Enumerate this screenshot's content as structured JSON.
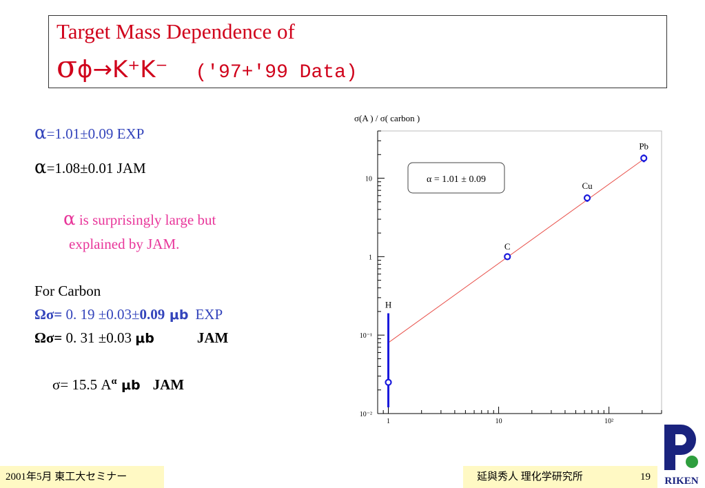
{
  "title": {
    "line1": "Target Mass Dependence of",
    "sigma": "σ",
    "reaction": "ϕ→K⁺K⁻",
    "data_note": "('97+'99 Data)"
  },
  "left": {
    "alpha_sym": "α",
    "exp_eq": "=1.01±0.09  EXP",
    "jam_eq": "=1.08±0.01  JAM",
    "note_line1": " is surprisingly large but",
    "note_line2": "explained by JAM.",
    "carbon_label": "For Carbon",
    "omega_sym": "Ωσ=",
    "exp_val": " 0. 19  ±0.03±",
    "exp_bold": "0.09",
    "mu_b": " μb",
    "exp_tag": "EXP",
    "jam_val": " 0. 31  ±0.03 ",
    "jam_tag": "JAM",
    "formula_prefix": "σ= 15.5 A",
    "formula_sup": "α",
    "formula_tag": "JAM"
  },
  "chart_data": {
    "type": "scatter",
    "title": "σ(A ) / σ( carbon )",
    "xscale": "log",
    "yscale": "log",
    "xlim": [
      0.8,
      300
    ],
    "ylim": [
      0.01,
      40
    ],
    "x_ticks": [
      {
        "v": 1,
        "label": "1"
      },
      {
        "v": 10,
        "label": "10"
      },
      {
        "v": 100,
        "label": "10²"
      }
    ],
    "y_ticks": [
      {
        "v": 0.01,
        "label": "10⁻²"
      },
      {
        "v": 0.1,
        "label": "10⁻¹"
      },
      {
        "v": 1,
        "label": "1"
      },
      {
        "v": 10,
        "label": "10"
      }
    ],
    "points": [
      {
        "label": "H",
        "x": 1,
        "y": 0.025,
        "err_low": 0.012,
        "err_high": 0.19
      },
      {
        "label": "C",
        "x": 12,
        "y": 1.0,
        "err_low": 0.95,
        "err_high": 1.05
      },
      {
        "label": "Cu",
        "x": 63.5,
        "y": 5.6,
        "err_low": 5.0,
        "err_high": 6.2
      },
      {
        "label": "Pb",
        "x": 207,
        "y": 18.0,
        "err_low": 16.0,
        "err_high": 20.0
      }
    ],
    "fit": {
      "x": [
        1,
        207
      ],
      "y": [
        0.08,
        17.5
      ]
    },
    "annotation": "α = 1.01 ± 0.09",
    "colors": {
      "points": "#1a1adb",
      "fit": "#e8504a"
    }
  },
  "footer": {
    "left": "2001年5月 東工大セミナー",
    "right": "延與秀人  理化学研究所",
    "page": "19",
    "logo_text": "RIKEN"
  }
}
